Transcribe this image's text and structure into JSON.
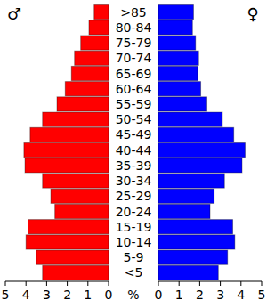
{
  "chart_data": {
    "type": "bar",
    "orientation": "horizontal",
    "categories": [
      "<5",
      "5-9",
      "10-14",
      "15-19",
      "20-24",
      "25-29",
      "30-34",
      "35-39",
      "40-44",
      "45-49",
      "50-54",
      "55-59",
      "60-64",
      "65-69",
      "70-74",
      "75-79",
      "80-84",
      ">85"
    ],
    "series": [
      {
        "name": "♂",
        "color": "#ff0000",
        "values": [
          3.2,
          3.5,
          4.0,
          3.9,
          2.6,
          2.8,
          3.2,
          4.05,
          4.1,
          3.8,
          3.2,
          2.5,
          2.1,
          1.8,
          1.65,
          1.35,
          0.95,
          0.7
        ]
      },
      {
        "name": "♀",
        "color": "#0000ff",
        "values": [
          2.9,
          3.35,
          3.7,
          3.6,
          2.5,
          2.7,
          3.2,
          4.05,
          4.2,
          3.65,
          3.1,
          2.35,
          2.05,
          1.9,
          1.95,
          1.8,
          1.65,
          1.7
        ]
      }
    ],
    "x_label": "%",
    "xlim": [
      0,
      5
    ],
    "xticks": [
      0,
      1,
      2,
      3,
      4,
      5
    ]
  }
}
